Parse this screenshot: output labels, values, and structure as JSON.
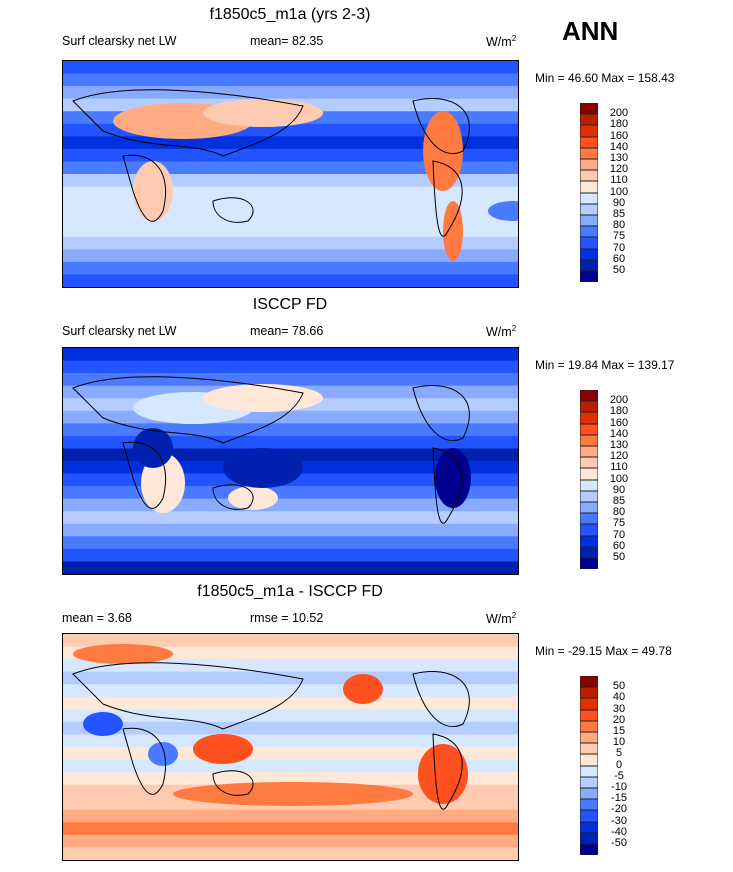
{
  "header": {
    "season": "ANN"
  },
  "colors": [
    "#8b0000",
    "#b82000",
    "#e03000",
    "#ff5020",
    "#ff7a40",
    "#ffaa80",
    "#ffcbb0",
    "#ffe8d8",
    "#d6e8ff",
    "#b4ccff",
    "#88aaff",
    "#4a7aff",
    "#2255ff",
    "#0030e0",
    "#0020b0",
    "#000090"
  ],
  "chart_data": {
    "type": "heatmap",
    "panels": [
      {
        "title": "f1850c5_m1a (yrs 2-3)",
        "variable": "Surf clearsky net LW",
        "mean": "mean=  82.35",
        "units": "W/m",
        "units_sup": "2",
        "minmax": "Min =  46.60 Max = 158.43",
        "levels": [
          "200",
          "180",
          "160",
          "140",
          "130",
          "120",
          "110",
          "100",
          "90",
          "85",
          "80",
          "75",
          "70",
          "60",
          "50"
        ]
      },
      {
        "title": "ISCCP FD",
        "variable": "Surf clearsky net LW",
        "mean": "mean=  78.66",
        "units": "W/m",
        "units_sup": "2",
        "minmax": "Min =  19.84 Max = 139.17",
        "levels": [
          "200",
          "180",
          "160",
          "140",
          "130",
          "120",
          "110",
          "100",
          "90",
          "85",
          "80",
          "75",
          "70",
          "60",
          "50"
        ]
      },
      {
        "title": "f1850c5_m1a - ISCCP FD",
        "variable": "mean =  3.68",
        "mean": "rmse =  10.52",
        "units": "W/m",
        "units_sup": "2",
        "minmax": "Min = -29.15 Max =  49.78",
        "levels": [
          "50",
          "40",
          "30",
          "20",
          "15",
          "10",
          "5",
          "0",
          "-5",
          "-10",
          "-15",
          "-20",
          "-30",
          "-40",
          "-50"
        ]
      }
    ]
  }
}
